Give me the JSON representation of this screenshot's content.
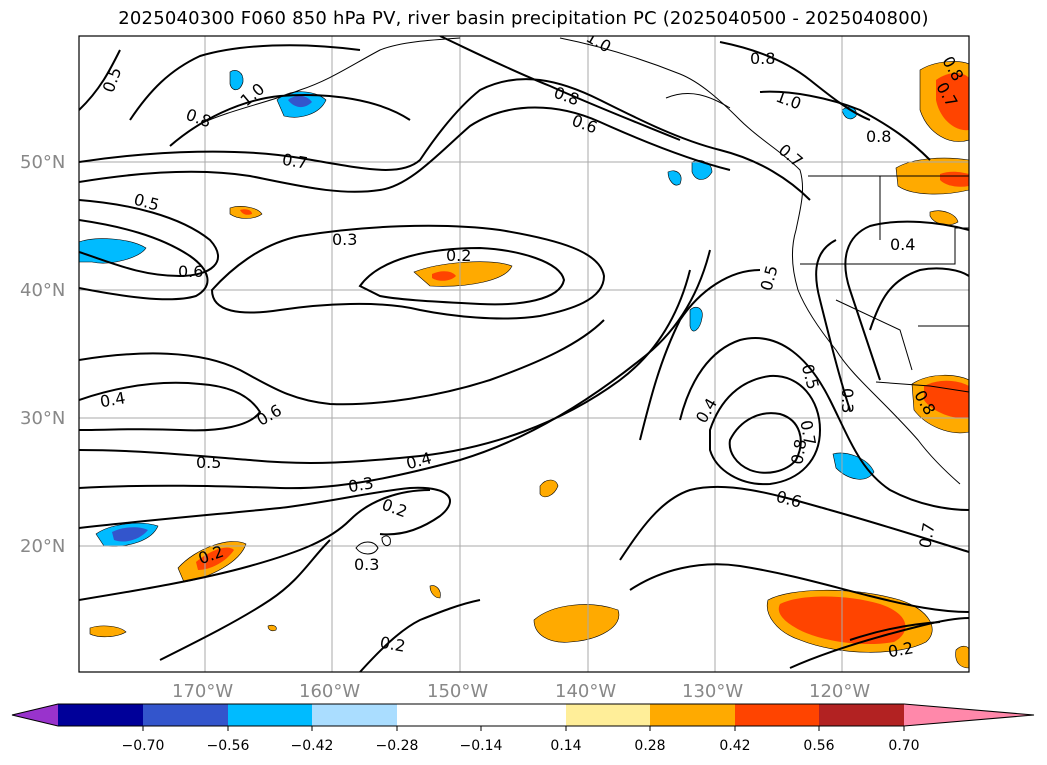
{
  "title": "2025040300 F060 850 hPa PV, river basin precipitation PC (2025040500 - 2025040800)",
  "map": {
    "lat_labels": [
      "50°N",
      "40°N",
      "30°N",
      "20°N"
    ],
    "lon_labels": [
      "170°W",
      "160°W",
      "150°W",
      "140°W",
      "130°W",
      "120°W"
    ],
    "contour_labels": [
      "0.5",
      "0.8",
      "1.0",
      "0.7",
      "0.5",
      "0.6",
      "0.3",
      "0.2",
      "0.8",
      "0.6",
      "0.4",
      "0.6",
      "0.5",
      "0.4",
      "0.3",
      "0.2",
      "0.3",
      "0.2",
      "0.2",
      "1.0",
      "0.8",
      "1.0",
      "0.8",
      "0.7",
      "0.4",
      "0.5",
      "0.4",
      "0.5",
      "0.3",
      "0.8",
      "0.7",
      "0.6",
      "0.7",
      "0.2",
      "0.8",
      "0.7",
      "0.8"
    ]
  },
  "colorbar": {
    "ticks": [
      "−0.70",
      "−0.56",
      "−0.42",
      "−0.28",
      "−0.14",
      "0.14",
      "0.28",
      "0.42",
      "0.56",
      "0.70"
    ],
    "colors": {
      "below": "#9933cc",
      "c1": "#000099",
      "c2": "#3355cc",
      "c3": "#00bbff",
      "c4": "#aaddff",
      "c5": "#ffffff",
      "c6": "#ffee99",
      "c7": "#ffaa00",
      "c8": "#ff4400",
      "c9": "#b22222",
      "above": "#ff88aa"
    }
  }
}
